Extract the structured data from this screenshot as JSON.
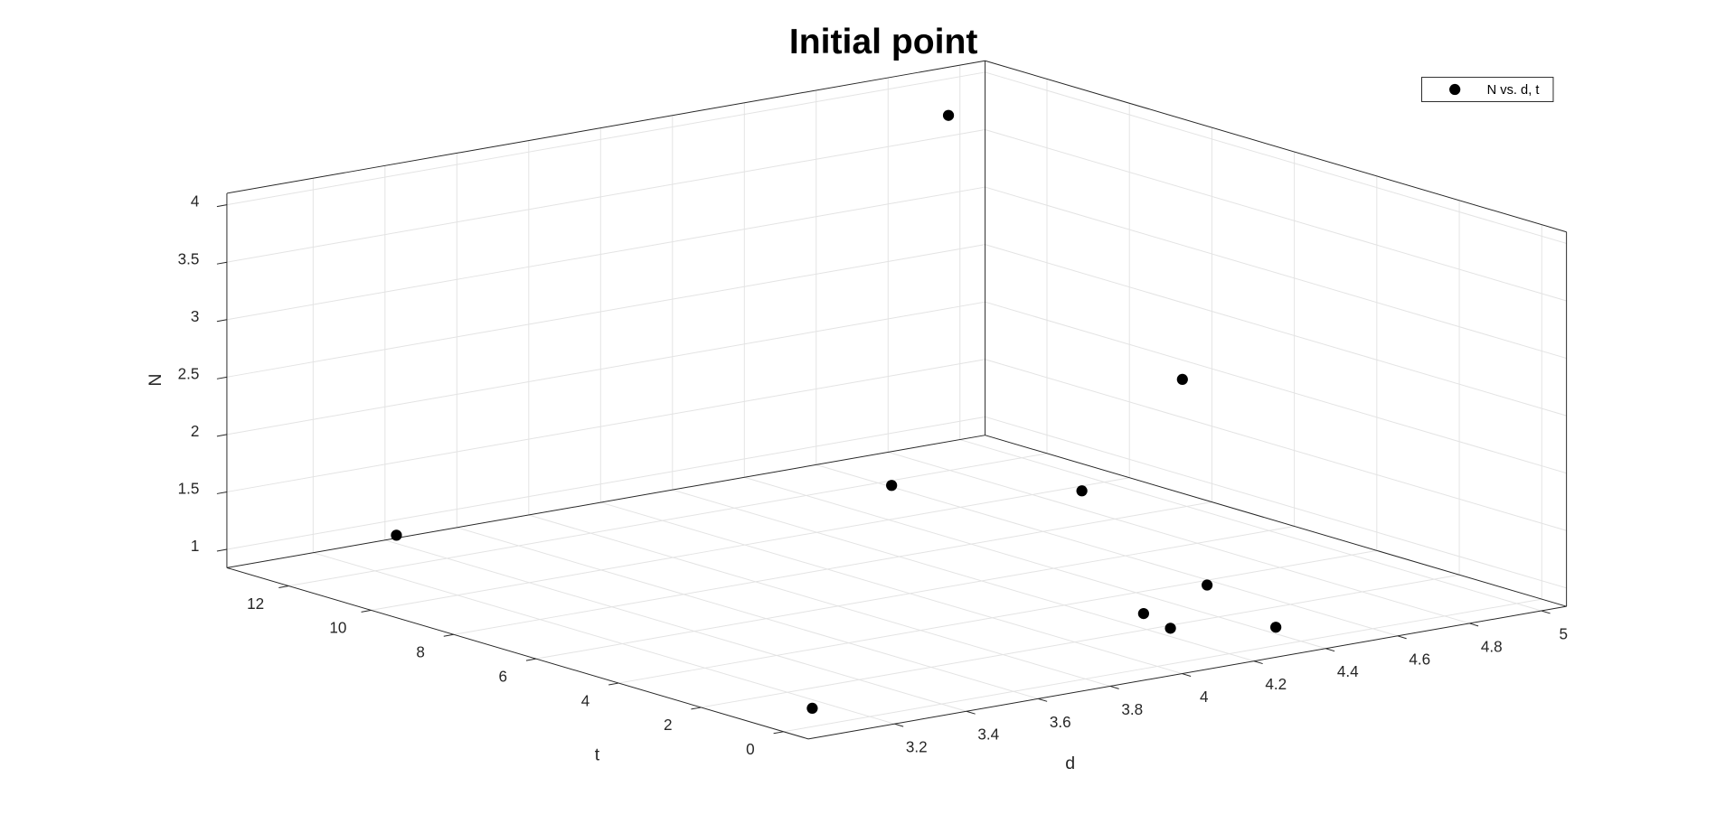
{
  "chart_data": {
    "type": "scatter3d",
    "title": "Initial point",
    "xlabel": "d",
    "ylabel": "t",
    "zlabel": "N",
    "series": [
      {
        "name": "N vs. d, t",
        "color": "#000000",
        "x": [
          3.04,
          4.33,
          4.14,
          4.18,
          4.46,
          4.8,
          4.5,
          3.34,
          4.07,
          4.75
        ],
        "y": [
          0,
          0,
          0.9,
          1.9,
          2.8,
          8.8,
          10.8,
          12.7,
          0,
          11.6
        ],
        "z": [
          1,
          1,
          1,
          1,
          1,
          1,
          1,
          1,
          3.3,
          4
        ]
      }
    ],
    "xlim": [
      2.96,
      5.07
    ],
    "ylim": [
      -0.6,
      13.5
    ],
    "zlim": [
      0.84,
      4.1
    ],
    "xticks": [
      3.2,
      3.4,
      3.6,
      3.8,
      4,
      4.2,
      4.4,
      4.6,
      4.8,
      5
    ],
    "yticks": [
      0,
      2,
      4,
      6,
      8,
      10,
      12
    ],
    "zticks": [
      1,
      1.5,
      2,
      2.5,
      3,
      3.5,
      4
    ],
    "grid": true,
    "legend": "northeast"
  }
}
